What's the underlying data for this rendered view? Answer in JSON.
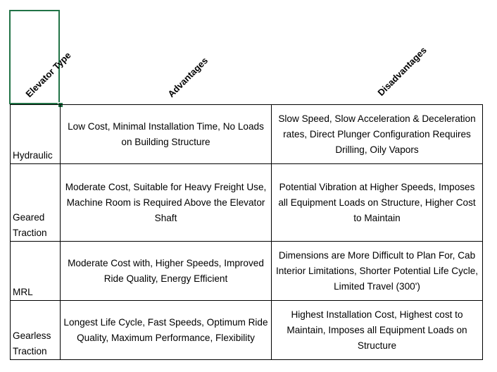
{
  "table": {
    "headers": [
      "Elevator Type",
      "Advantages",
      "Disadvantages"
    ],
    "rows": [
      [
        "Hydraulic",
        "Low Cost, Minimal Installation Time, No Loads on Building Structure",
        "Slow Speed, Slow Acceleration & Deceleration rates, Direct Plunger Configuration Requires Drilling, Oily Vapors"
      ],
      [
        "Geared Traction",
        "Moderate Cost, Suitable for Heavy Freight Use, Machine Room is Required Above the Elevator Shaft",
        "Potential Vibration at Higher Speeds, Imposes all Equipment Loads on Structure, Higher Cost to Maintain"
      ],
      [
        "MRL",
        "Moderate Cost with, Higher Speeds, Improved Ride Quality, Energy Efficient",
        "Dimensions are More Difficult to Plan For, Cab Interior Limitations, Shorter Potential Life Cycle, Limited Travel (300')"
      ],
      [
        "Gearless Traction",
        "Longest Life Cycle, Fast Speeds, Optimum Ride Quality, Maximum Performance, Flexibility",
        "Highest Installation Cost, Highest cost to Maintain, Imposes all Equipment Loads on Structure"
      ]
    ]
  }
}
